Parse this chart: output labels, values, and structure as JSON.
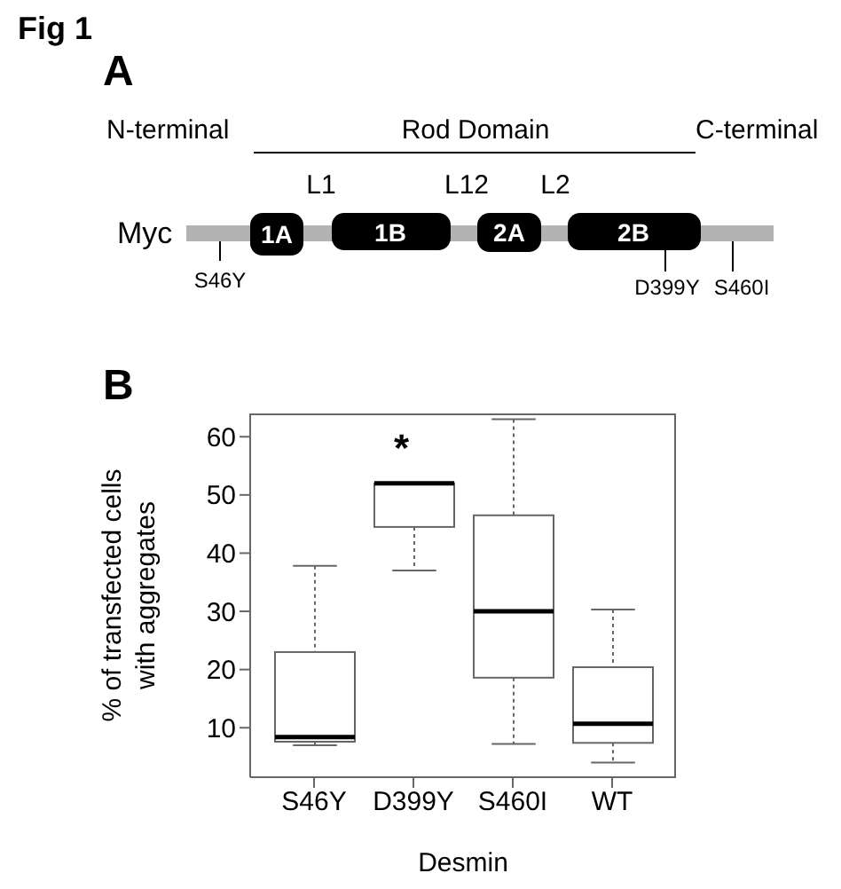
{
  "chart_data": [
    {
      "type": "other",
      "title": "A",
      "annotations": [
        "Fig 1",
        "N-terminal",
        "Rod Domain",
        "C-terminal",
        "L1",
        "L12",
        "L2",
        "Myc",
        "1A",
        "1B",
        "2A",
        "2B",
        "S46Y",
        "D399Y",
        "S460I"
      ]
    },
    {
      "type": "box",
      "title": "B",
      "xlabel": "Desmin",
      "ylabel": "% of transfected cells with aggregates",
      "categories": [
        "S46Y",
        "D399Y",
        "S460I",
        "WT"
      ],
      "boxes": [
        {
          "low": 7.0,
          "q1": 7.6,
          "median": 8.4,
          "q3": 23.0,
          "high": 37.8
        },
        {
          "low": 37.0,
          "q1": 44.5,
          "median": 52.0,
          "q3": 52.0,
          "high": 52.0
        },
        {
          "low": 7.2,
          "q1": 18.6,
          "median": 30.0,
          "q3": 46.5,
          "high": 63.0
        },
        {
          "low": 4.0,
          "q1": 7.4,
          "median": 10.7,
          "q3": 20.4,
          "high": 30.3
        }
      ],
      "ylim": [
        1.5,
        64
      ],
      "yticks": [
        10,
        20,
        30,
        40,
        50,
        60
      ],
      "annotations": [
        "*"
      ]
    }
  ]
}
